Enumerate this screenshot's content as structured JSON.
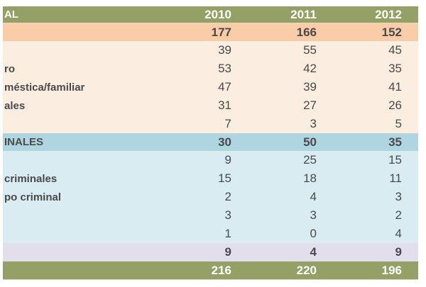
{
  "colors": {
    "olive": "#94A065",
    "orange": "#FACDA8",
    "peach": "#FBEEE1",
    "blue_header": "#AFD5E0",
    "blue": "#D9ECF2",
    "purple": "#E2DEEC",
    "text_dark": "#4A4A4A",
    "text_white": "#FFFFFF"
  },
  "chart_data": {
    "type": "table",
    "title": "",
    "columns": [
      "",
      "2010",
      "2011",
      "2012"
    ],
    "header": {
      "label_fragment": "AL",
      "years": [
        "2010",
        "2011",
        "2012"
      ]
    },
    "rows": [
      {
        "label": "",
        "values": [
          "177",
          "166",
          "152"
        ],
        "style": "subtotal-orange"
      },
      {
        "label": "",
        "values": [
          "39",
          "55",
          "45"
        ],
        "style": "peach"
      },
      {
        "label": "ro",
        "values": [
          "53",
          "42",
          "35"
        ],
        "style": "peach"
      },
      {
        "label": "méstica/familiar",
        "values": [
          "47",
          "39",
          "41"
        ],
        "style": "peach"
      },
      {
        "label": "ales",
        "values": [
          "31",
          "27",
          "26"
        ],
        "style": "peach"
      },
      {
        "label": "",
        "values": [
          "7",
          "3",
          "5"
        ],
        "style": "peach"
      },
      {
        "label": "INALES",
        "values": [
          "30",
          "50",
          "35"
        ],
        "style": "subtotal-blue"
      },
      {
        "label": "",
        "values": [
          "9",
          "25",
          "15"
        ],
        "style": "blue"
      },
      {
        "label": "criminales",
        "values": [
          "15",
          "18",
          "11"
        ],
        "style": "blue"
      },
      {
        "label": "po criminal",
        "values": [
          "2",
          "4",
          "3"
        ],
        "style": "blue"
      },
      {
        "label": "",
        "values": [
          "3",
          "3",
          "2"
        ],
        "style": "blue"
      },
      {
        "label": "",
        "values": [
          "1",
          "0",
          "4"
        ],
        "style": "blue"
      },
      {
        "label": "",
        "values": [
          "9",
          "4",
          "9"
        ],
        "style": "subtotal-purple"
      },
      {
        "label": "",
        "values": [
          "216",
          "220",
          "196"
        ],
        "style": "total-olive"
      }
    ]
  }
}
